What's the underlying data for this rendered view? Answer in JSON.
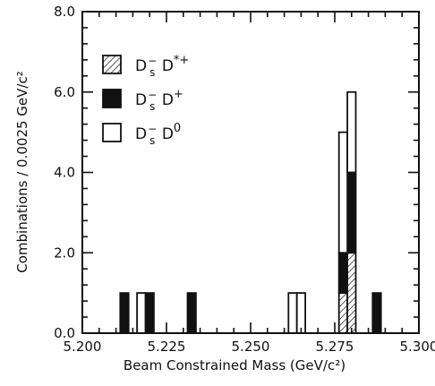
{
  "chart_data": {
    "type": "bar",
    "stacked": true,
    "xlabel": "Beam Constrained Mass (GeV/c²)",
    "ylabel": "Combinations / 0.0025 GeV/c²",
    "xlim": [
      5.2,
      5.3
    ],
    "ylim": [
      0,
      8
    ],
    "xticks": [
      "5.200",
      "5.225",
      "5.250",
      "5.275",
      "5.300"
    ],
    "yticks": [
      "0.0",
      "2.0",
      "4.0",
      "6.0",
      "8.0"
    ],
    "grid": false,
    "legend_position": "top-left",
    "bin_width": 0.0025,
    "series": [
      {
        "key": "dstar",
        "label_main": "D",
        "label_sub": "s",
        "label_sup": "−",
        "label_rest": " D",
        "label_rest_sup": "*+",
        "fill": "hatched",
        "bins": [
          {
            "x": 5.2775,
            "value": 1
          },
          {
            "x": 5.28,
            "value": 2
          }
        ]
      },
      {
        "key": "dplus",
        "label_main": "D",
        "label_sub": "s",
        "label_sup": "−",
        "label_rest": " D",
        "label_rest_sup": "+",
        "fill": "solid",
        "bins": [
          {
            "x": 5.2125,
            "value": 1
          },
          {
            "x": 5.22,
            "value": 1
          },
          {
            "x": 5.2325,
            "value": 1
          },
          {
            "x": 5.2775,
            "value": 1
          },
          {
            "x": 5.28,
            "value": 2
          },
          {
            "x": 5.2875,
            "value": 1
          }
        ]
      },
      {
        "key": "dzero",
        "label_main": "D",
        "label_sub": "s",
        "label_sup": "−",
        "label_rest": " D",
        "label_rest_sup": "0",
        "fill": "open",
        "bins": [
          {
            "x": 5.2175,
            "value": 1
          },
          {
            "x": 5.2625,
            "value": 1
          },
          {
            "x": 5.265,
            "value": 1
          },
          {
            "x": 5.2775,
            "value": 3
          },
          {
            "x": 5.28,
            "value": 2
          }
        ]
      }
    ]
  }
}
